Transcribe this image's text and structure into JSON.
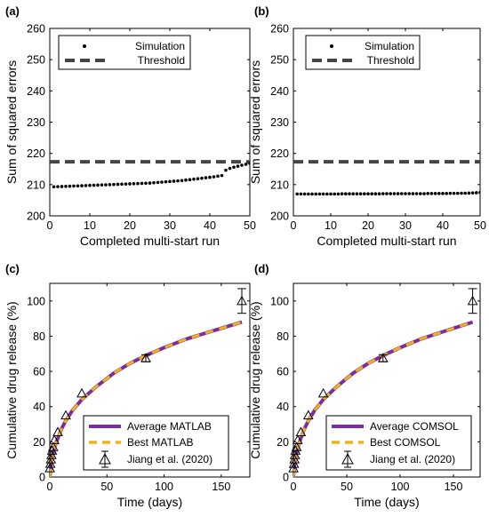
{
  "figure": {
    "sim_color": "#000000",
    "threshold_color": "#444444",
    "avg_color": "#7a2e9e",
    "best_color": "#f2b21c"
  },
  "chart_data": [
    {
      "panel": "(a)",
      "type": "scatter",
      "xlabel": "Completed multi-start run",
      "ylabel": "Sum of squared errors",
      "xlim": [
        0,
        50
      ],
      "ylim": [
        200,
        260
      ],
      "xticks": [
        0,
        10,
        20,
        30,
        40,
        50
      ],
      "yticks": [
        200,
        210,
        220,
        230,
        240,
        250,
        260
      ],
      "legend_position": "top-left",
      "threshold": 217.3,
      "series": [
        {
          "name": "Simulation",
          "kind": "dots",
          "x": [
            1,
            2,
            3,
            4,
            5,
            6,
            7,
            8,
            9,
            10,
            11,
            12,
            13,
            14,
            15,
            16,
            17,
            18,
            19,
            20,
            21,
            22,
            23,
            24,
            25,
            26,
            27,
            28,
            29,
            30,
            31,
            32,
            33,
            34,
            35,
            36,
            37,
            38,
            39,
            40,
            41,
            42,
            43,
            44,
            45,
            46,
            47,
            48,
            49,
            50
          ],
          "values": [
            209.3,
            209.35,
            209.4,
            209.45,
            209.5,
            209.55,
            209.6,
            209.65,
            209.7,
            209.75,
            209.8,
            209.85,
            209.9,
            209.95,
            210.0,
            210.05,
            210.1,
            210.15,
            210.2,
            210.25,
            210.3,
            210.35,
            210.4,
            210.45,
            210.5,
            210.6,
            210.7,
            210.8,
            210.9,
            211.0,
            211.1,
            211.2,
            211.3,
            211.45,
            211.6,
            211.75,
            211.9,
            212.05,
            212.2,
            212.35,
            212.5,
            212.7,
            212.9,
            214.6,
            215.2,
            215.6,
            215.9,
            216.2,
            216.5,
            216.8
          ]
        },
        {
          "name": "Threshold",
          "kind": "dashed"
        }
      ]
    },
    {
      "panel": "(b)",
      "type": "scatter",
      "xlabel": "Completed multi-start run",
      "ylabel": "Sum of squared errors",
      "xlim": [
        0,
        50
      ],
      "ylim": [
        200,
        260
      ],
      "xticks": [
        0,
        10,
        20,
        30,
        40,
        50
      ],
      "yticks": [
        200,
        210,
        220,
        230,
        240,
        250,
        260
      ],
      "legend_position": "top-right",
      "threshold": 217.3,
      "series": [
        {
          "name": "Simulation",
          "kind": "dots",
          "x": [
            1,
            2,
            3,
            4,
            5,
            6,
            7,
            8,
            9,
            10,
            11,
            12,
            13,
            14,
            15,
            16,
            17,
            18,
            19,
            20,
            21,
            22,
            23,
            24,
            25,
            26,
            27,
            28,
            29,
            30,
            31,
            32,
            33,
            34,
            35,
            36,
            37,
            38,
            39,
            40,
            41,
            42,
            43,
            44,
            45,
            46,
            47,
            48,
            49,
            50
          ],
          "values": [
            207.0,
            207.0,
            207.0,
            207.0,
            207.0,
            207.0,
            207.0,
            207.0,
            207.0,
            207.0,
            207.0,
            207.0,
            207.05,
            207.05,
            207.05,
            207.05,
            207.05,
            207.05,
            207.05,
            207.05,
            207.05,
            207.05,
            207.05,
            207.1,
            207.1,
            207.1,
            207.1,
            207.1,
            207.1,
            207.1,
            207.1,
            207.1,
            207.1,
            207.1,
            207.1,
            207.15,
            207.15,
            207.15,
            207.15,
            207.15,
            207.15,
            207.2,
            207.2,
            207.2,
            207.25,
            207.25,
            207.3,
            207.35,
            207.4,
            207.5
          ]
        },
        {
          "name": "Threshold",
          "kind": "dashed"
        }
      ]
    },
    {
      "panel": "(c)",
      "type": "line",
      "xlabel": "Time (days)",
      "ylabel": "Cumulative drug release (%)",
      "xlim": [
        0,
        175
      ],
      "ylim": [
        0,
        110
      ],
      "xticks": [
        0,
        50,
        100,
        150
      ],
      "yticks": [
        0,
        20,
        40,
        60,
        80,
        100
      ],
      "legend_position": "bottom-right",
      "series": [
        {
          "name": "Average MATLAB",
          "kind": "solid",
          "x": [
            0,
            0.5,
            1,
            2,
            3,
            5,
            7,
            10,
            14,
            20,
            28,
            40,
            56,
            70,
            84,
            100,
            120,
            140,
            168
          ],
          "values": [
            0,
            3.5,
            7,
            11,
            14,
            18.5,
            22,
            27,
            32,
            38,
            44,
            51,
            59,
            64.5,
            69,
            73.5,
            78.5,
            82.5,
            88
          ]
        },
        {
          "name": "Best MATLAB",
          "kind": "dashed",
          "x": [
            0,
            0.5,
            1,
            2,
            3,
            5,
            7,
            10,
            14,
            20,
            28,
            40,
            56,
            70,
            84,
            100,
            120,
            140,
            168
          ],
          "values": [
            0,
            3.5,
            7,
            11,
            14,
            18.5,
            22,
            27,
            32,
            38,
            44,
            51,
            59,
            64.5,
            69,
            73.5,
            78.5,
            82.5,
            88
          ]
        },
        {
          "name": "Jiang et al. (2020)",
          "kind": "triangle-errorbar",
          "x": [
            0.1,
            0.5,
            1,
            1.5,
            2,
            3,
            4,
            7,
            14,
            28,
            84,
            168
          ],
          "values": [
            5,
            7.5,
            10,
            12.5,
            15,
            17,
            21,
            25.5,
            35,
            47.5,
            67.5,
            100
          ],
          "errors": [
            1,
            1,
            1,
            1,
            1,
            1,
            1,
            1.5,
            1.5,
            1.5,
            2,
            7
          ]
        }
      ]
    },
    {
      "panel": "(d)",
      "type": "line",
      "xlabel": "Time (days)",
      "ylabel": "Cumulative drug release (%)",
      "xlim": [
        0,
        175
      ],
      "ylim": [
        0,
        110
      ],
      "xticks": [
        0,
        50,
        100,
        150
      ],
      "yticks": [
        0,
        20,
        40,
        60,
        80,
        100
      ],
      "legend_position": "bottom-right",
      "series": [
        {
          "name": "Average COMSOL",
          "kind": "solid",
          "x": [
            0,
            0.5,
            1,
            2,
            3,
            5,
            7,
            10,
            14,
            20,
            28,
            40,
            56,
            70,
            84,
            100,
            120,
            140,
            168
          ],
          "values": [
            0,
            3.5,
            7,
            11,
            14,
            18.5,
            22,
            27,
            32,
            38,
            44,
            51,
            59,
            64.5,
            69,
            73.5,
            78.5,
            82.5,
            88
          ]
        },
        {
          "name": "Best COMSOL",
          "kind": "dashed",
          "x": [
            0,
            0.5,
            1,
            2,
            3,
            5,
            7,
            10,
            14,
            20,
            28,
            40,
            56,
            70,
            84,
            100,
            120,
            140,
            168
          ],
          "values": [
            0,
            3.5,
            7,
            11,
            14,
            18.5,
            22,
            27,
            32,
            38,
            44,
            51,
            59,
            64.5,
            69,
            73.5,
            78.5,
            82.5,
            88
          ]
        },
        {
          "name": "Jiang et al. (2020)",
          "kind": "triangle-errorbar",
          "x": [
            0.1,
            0.5,
            1,
            1.5,
            2,
            3,
            4,
            7,
            14,
            28,
            84,
            168
          ],
          "values": [
            5,
            7.5,
            10,
            12.5,
            15,
            17,
            21,
            25.5,
            35,
            47.5,
            67.5,
            100
          ],
          "errors": [
            1,
            1,
            1,
            1,
            1,
            1,
            1,
            1.5,
            1.5,
            1.5,
            2,
            7
          ]
        }
      ]
    }
  ]
}
